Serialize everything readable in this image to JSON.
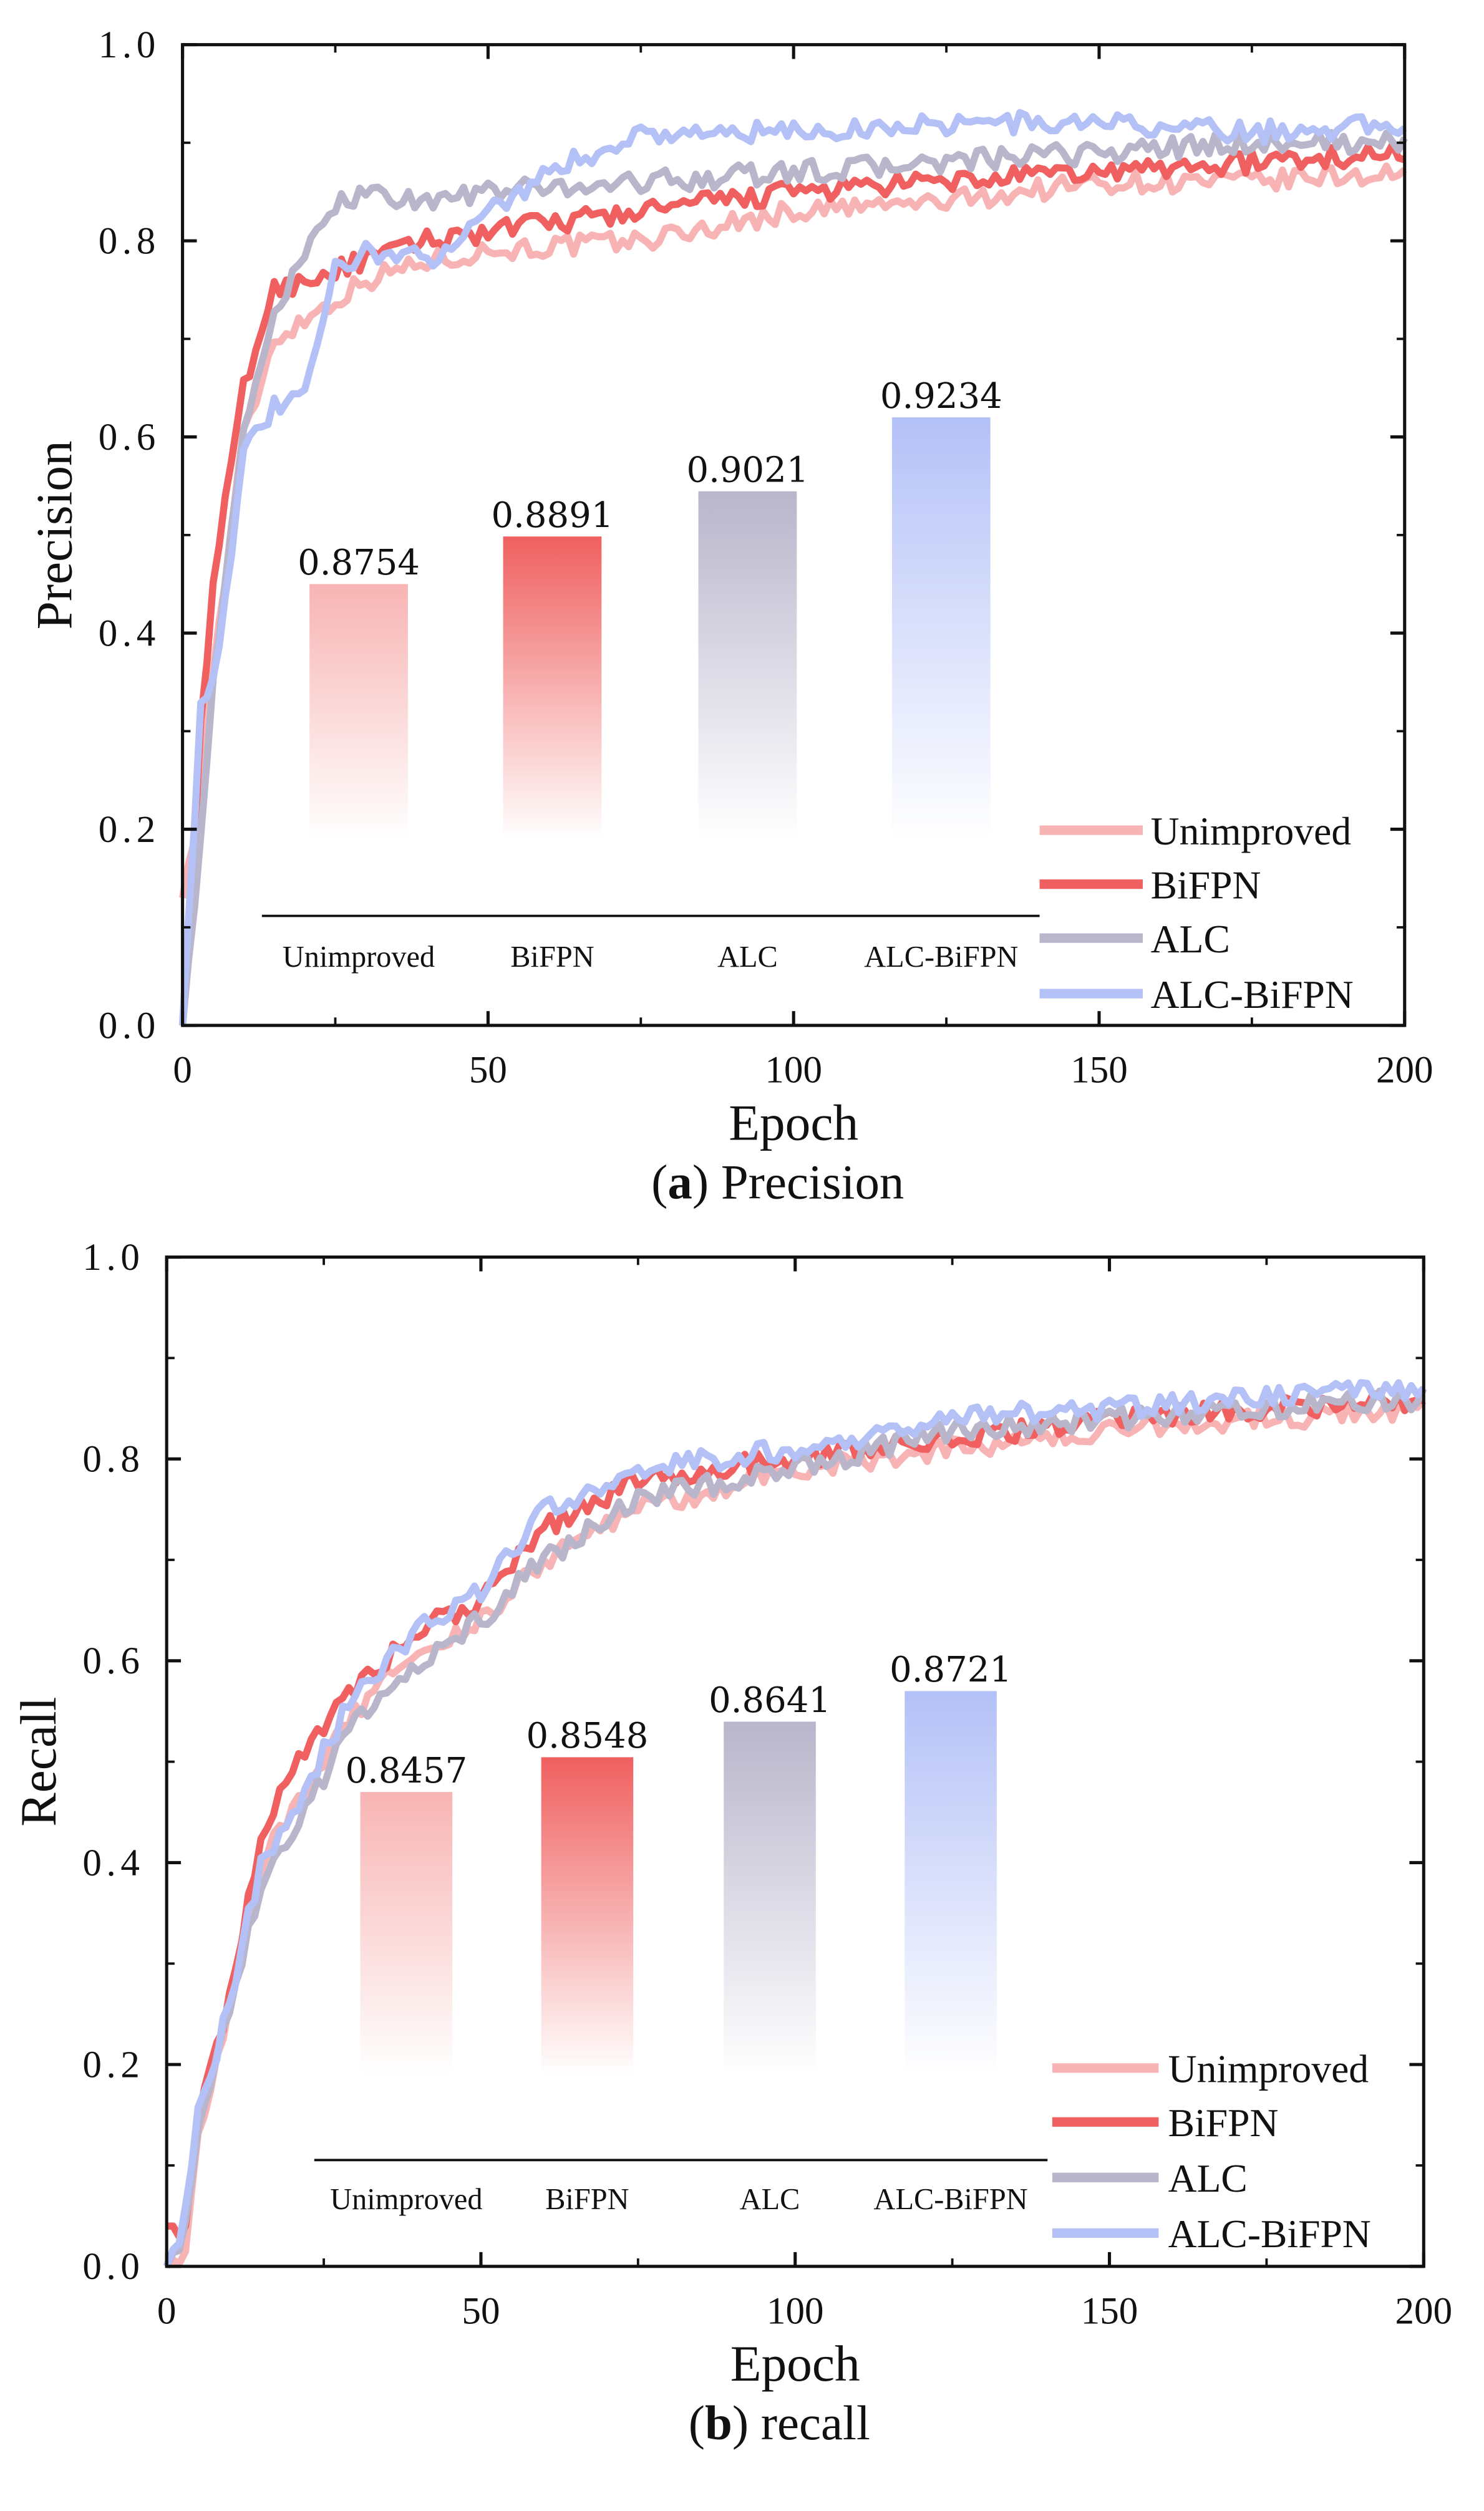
{
  "chart_data": [
    {
      "type": "line",
      "panel": "a",
      "caption_letter": "a",
      "caption_text": "Precision",
      "xlabel": "Epoch",
      "ylabel": "Precision",
      "xlim": [
        0,
        200
      ],
      "ylim": [
        0,
        1
      ],
      "xticks": [
        "0",
        "50",
        "100",
        "150",
        "200"
      ],
      "yticks": [
        "0.0",
        "0.2",
        "0.4",
        "0.6",
        "0.8",
        "1.0"
      ],
      "legend_position": "bottom-right",
      "series": [
        {
          "name": "Unimproved",
          "color": "#f8b4b4",
          "points": [
            [
              0,
              0.13
            ],
            [
              2,
              0.2
            ],
            [
              5,
              0.36
            ],
            [
              10,
              0.6
            ],
            [
              15,
              0.7
            ],
            [
              20,
              0.72
            ],
            [
              30,
              0.76
            ],
            [
              40,
              0.78
            ],
            [
              50,
              0.79
            ],
            [
              75,
              0.8
            ],
            [
              100,
              0.83
            ],
            [
              125,
              0.84
            ],
            [
              150,
              0.86
            ],
            [
              175,
              0.86
            ],
            [
              200,
              0.87
            ]
          ]
        },
        {
          "name": "BiFPN",
          "color": "#f06060",
          "points": [
            [
              0,
              0.0
            ],
            [
              3,
              0.3
            ],
            [
              5,
              0.45
            ],
            [
              10,
              0.65
            ],
            [
              15,
              0.75
            ],
            [
              20,
              0.76
            ],
            [
              30,
              0.78
            ],
            [
              40,
              0.8
            ],
            [
              50,
              0.81
            ],
            [
              75,
              0.83
            ],
            [
              100,
              0.85
            ],
            [
              125,
              0.86
            ],
            [
              150,
              0.87
            ],
            [
              175,
              0.88
            ],
            [
              200,
              0.89
            ]
          ]
        },
        {
          "name": "ALC",
          "color": "#b9b5cb",
          "points": [
            [
              0,
              0.0
            ],
            [
              3,
              0.2
            ],
            [
              5,
              0.35
            ],
            [
              10,
              0.6
            ],
            [
              15,
              0.73
            ],
            [
              20,
              0.78
            ],
            [
              25,
              0.84
            ],
            [
              30,
              0.85
            ],
            [
              40,
              0.84
            ],
            [
              50,
              0.85
            ],
            [
              75,
              0.86
            ],
            [
              100,
              0.87
            ],
            [
              125,
              0.88
            ],
            [
              150,
              0.89
            ],
            [
              175,
              0.9
            ],
            [
              200,
              0.9
            ]
          ]
        },
        {
          "name": "ALC-BiFPN",
          "color": "#b4c1f7",
          "points": [
            [
              0,
              0.0
            ],
            [
              3,
              0.33
            ],
            [
              5,
              0.35
            ],
            [
              10,
              0.58
            ],
            [
              15,
              0.63
            ],
            [
              20,
              0.64
            ],
            [
              25,
              0.77
            ],
            [
              30,
              0.79
            ],
            [
              40,
              0.78
            ],
            [
              50,
              0.83
            ],
            [
              60,
              0.87
            ],
            [
              75,
              0.91
            ],
            [
              100,
              0.91
            ],
            [
              125,
              0.92
            ],
            [
              150,
              0.92
            ],
            [
              175,
              0.91
            ],
            [
              200,
              0.92
            ]
          ]
        }
      ],
      "inset_bars": {
        "categories": [
          "Unimproved",
          "BiFPN",
          "ALC",
          "ALC-BiFPN"
        ],
        "values": [
          0.8754,
          0.8891,
          0.9021,
          0.9234
        ],
        "labels": [
          "0.8754",
          "0.8891",
          "0.9021",
          "0.9234"
        ]
      }
    },
    {
      "type": "line",
      "panel": "b",
      "caption_letter": "b",
      "caption_text": "recall",
      "xlabel": "Epoch",
      "ylabel": "Recall",
      "xlim": [
        0,
        200
      ],
      "ylim": [
        0,
        1
      ],
      "xticks": [
        "0",
        "50",
        "100",
        "150",
        "200"
      ],
      "yticks": [
        "0.0",
        "0.2",
        "0.4",
        "0.6",
        "0.8",
        "1.0"
      ],
      "legend_position": "bottom-right",
      "series": [
        {
          "name": "Unimproved",
          "color": "#f8b4b4",
          "points": [
            [
              0,
              0.0
            ],
            [
              3,
              0.02
            ],
            [
              5,
              0.13
            ],
            [
              10,
              0.26
            ],
            [
              15,
              0.4
            ],
            [
              20,
              0.45
            ],
            [
              30,
              0.55
            ],
            [
              40,
              0.61
            ],
            [
              50,
              0.64
            ],
            [
              60,
              0.7
            ],
            [
              75,
              0.75
            ],
            [
              100,
              0.79
            ],
            [
              125,
              0.81
            ],
            [
              150,
              0.83
            ],
            [
              175,
              0.84
            ],
            [
              200,
              0.85
            ]
          ]
        },
        {
          "name": "BiFPN",
          "color": "#f06060",
          "points": [
            [
              0,
              0.04
            ],
            [
              3,
              0.04
            ],
            [
              5,
              0.14
            ],
            [
              10,
              0.27
            ],
            [
              15,
              0.42
            ],
            [
              20,
              0.5
            ],
            [
              30,
              0.57
            ],
            [
              40,
              0.63
            ],
            [
              50,
              0.66
            ],
            [
              60,
              0.73
            ],
            [
              75,
              0.78
            ],
            [
              100,
              0.8
            ],
            [
              125,
              0.82
            ],
            [
              150,
              0.84
            ],
            [
              175,
              0.85
            ],
            [
              200,
              0.86
            ]
          ]
        },
        {
          "name": "ALC",
          "color": "#b9b5cb",
          "points": [
            [
              0,
              0.0
            ],
            [
              3,
              0.04
            ],
            [
              5,
              0.13
            ],
            [
              10,
              0.25
            ],
            [
              15,
              0.38
            ],
            [
              20,
              0.43
            ],
            [
              30,
              0.54
            ],
            [
              40,
              0.6
            ],
            [
              50,
              0.64
            ],
            [
              60,
              0.7
            ],
            [
              75,
              0.76
            ],
            [
              100,
              0.79
            ],
            [
              125,
              0.83
            ],
            [
              150,
              0.84
            ],
            [
              175,
              0.85
            ],
            [
              200,
              0.86
            ]
          ]
        },
        {
          "name": "ALC-BiFPN",
          "color": "#b4c1f7",
          "points": [
            [
              0,
              0.0
            ],
            [
              3,
              0.05
            ],
            [
              5,
              0.15
            ],
            [
              10,
              0.26
            ],
            [
              15,
              0.4
            ],
            [
              20,
              0.45
            ],
            [
              30,
              0.57
            ],
            [
              40,
              0.63
            ],
            [
              50,
              0.67
            ],
            [
              60,
              0.75
            ],
            [
              75,
              0.79
            ],
            [
              100,
              0.81
            ],
            [
              125,
              0.84
            ],
            [
              150,
              0.85
            ],
            [
              175,
              0.86
            ],
            [
              200,
              0.87
            ]
          ]
        }
      ],
      "inset_bars": {
        "categories": [
          "Unimproved",
          "BiFPN",
          "ALC",
          "ALC-BiFPN"
        ],
        "values": [
          0.8457,
          0.8548,
          0.8641,
          0.8721
        ],
        "labels": [
          "0.8457",
          "0.8548",
          "0.8641",
          "0.8721"
        ]
      }
    }
  ]
}
